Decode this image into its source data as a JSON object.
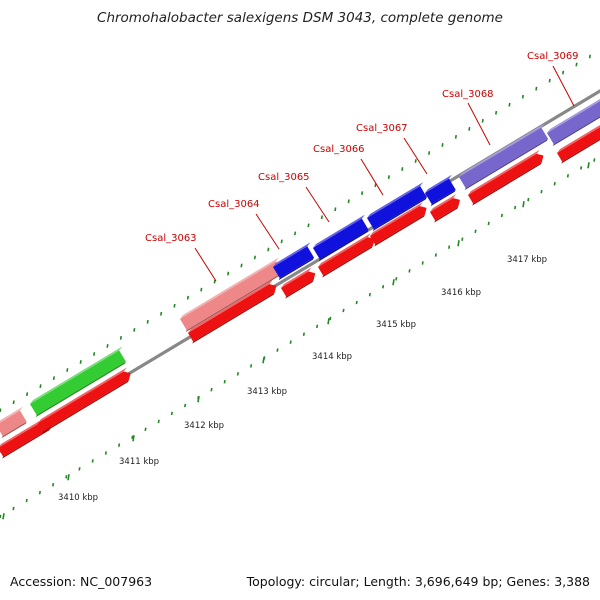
{
  "title": "Chromohalobacter salexigens DSM 3043, complete genome",
  "footer": {
    "accession": "Accession: NC_007963",
    "summary": "Topology: circular; Length: 3,696,649 bp; Genes: 3,388"
  },
  "scale_labels": [
    "3410 kbp",
    "3411 kbp",
    "3412 kbp",
    "3413 kbp",
    "3414 kbp",
    "3415 kbp",
    "3416 kbp",
    "3417 kbp"
  ],
  "gene_labels": [
    "Csal_3063",
    "Csal_3064",
    "Csal_3065",
    "Csal_3066",
    "Csal_3067",
    "Csal_3068",
    "Csal_3069"
  ],
  "colors": {
    "cds_red": "#ee1111",
    "pink": "#ee8888",
    "green": "#33cc33",
    "blue": "#1111dd",
    "purple": "#7766cc",
    "backbone": "#888888",
    "tick_green": "#228822",
    "label_red": "#cc0000"
  }
}
